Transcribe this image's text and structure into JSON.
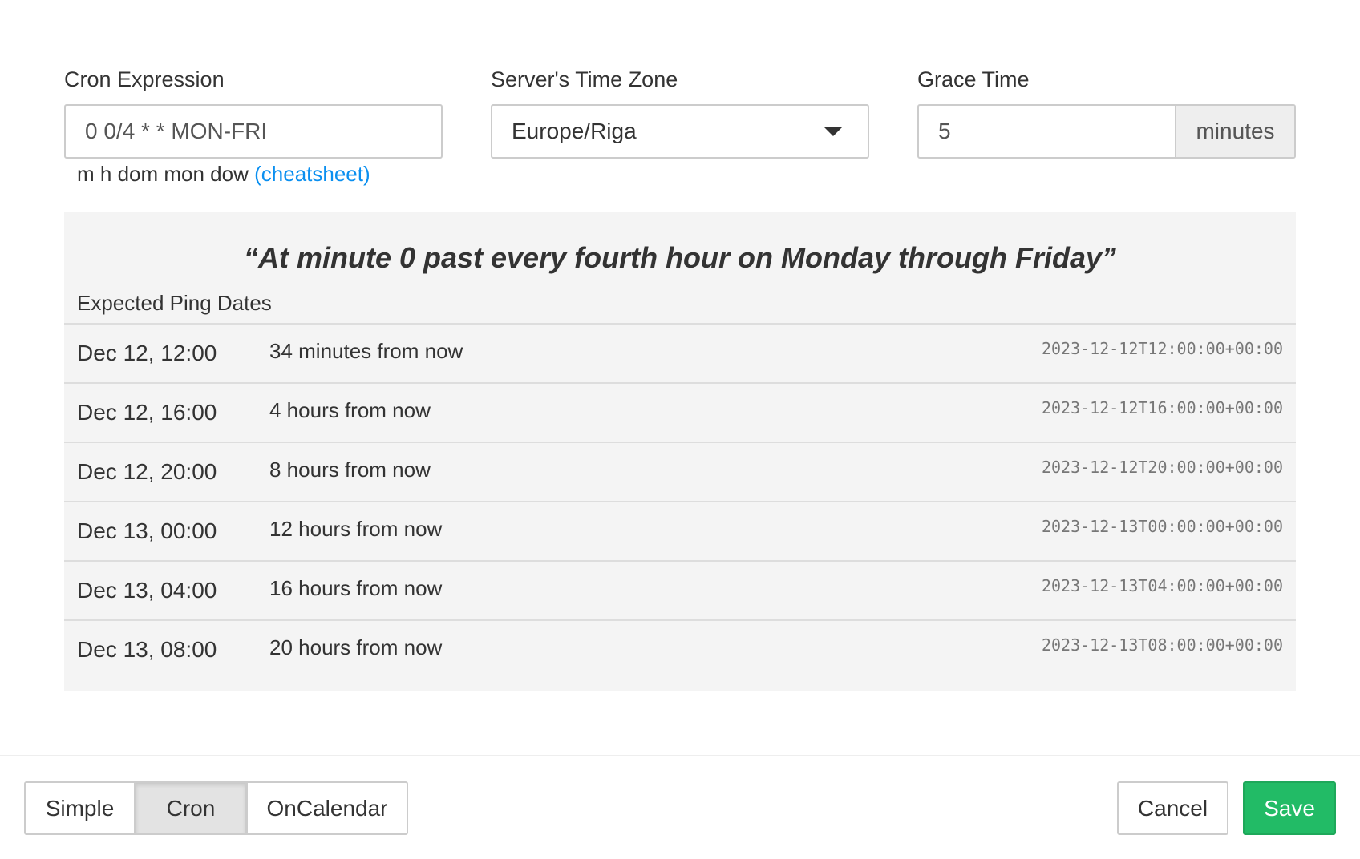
{
  "cron": {
    "label": "Cron Expression",
    "value": "0 0/4 * * MON-FRI",
    "hint": "m h dom mon dow",
    "cheatsheet": "(cheatsheet)"
  },
  "timezone": {
    "label": "Server's Time Zone",
    "value": "Europe/Riga"
  },
  "grace": {
    "label": "Grace Time",
    "value": "5",
    "unit": "minutes"
  },
  "panel": {
    "description": "“At minute 0 past every fourth hour on Monday through Friday”",
    "subtitle": "Expected Ping Dates",
    "rows": [
      {
        "date": "Dec 12, 12:00",
        "relative": "34 minutes from now",
        "iso": "2023-12-12T12:00:00+00:00"
      },
      {
        "date": "Dec 12, 16:00",
        "relative": "4 hours from now",
        "iso": "2023-12-12T16:00:00+00:00"
      },
      {
        "date": "Dec 12, 20:00",
        "relative": "8 hours from now",
        "iso": "2023-12-12T20:00:00+00:00"
      },
      {
        "date": "Dec 13, 00:00",
        "relative": "12 hours from now",
        "iso": "2023-12-13T00:00:00+00:00"
      },
      {
        "date": "Dec 13, 04:00",
        "relative": "16 hours from now",
        "iso": "2023-12-13T04:00:00+00:00"
      },
      {
        "date": "Dec 13, 08:00",
        "relative": "20 hours from now",
        "iso": "2023-12-13T08:00:00+00:00"
      }
    ]
  },
  "footer": {
    "modes": [
      "Simple",
      "Cron",
      "OnCalendar"
    ],
    "active_mode": "Cron",
    "cancel": "Cancel",
    "save": "Save",
    "save_color": "#22bb66"
  }
}
